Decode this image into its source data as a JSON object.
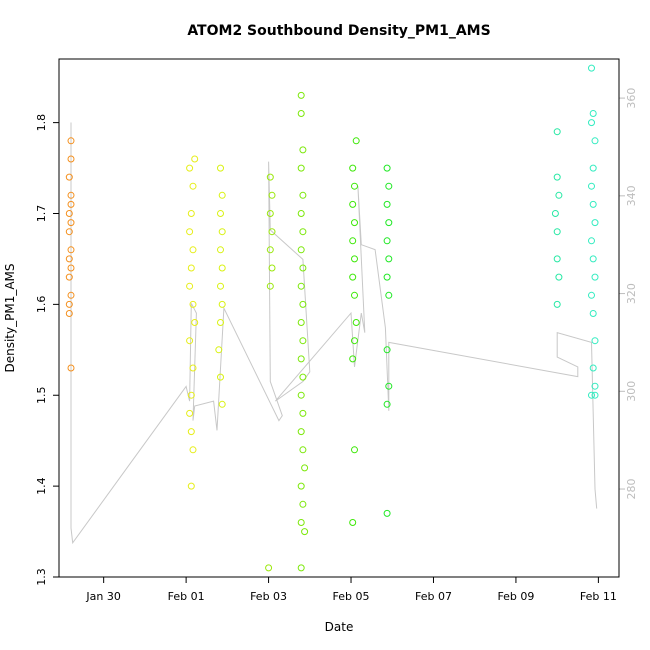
{
  "chart_data": {
    "type": "scatter",
    "title": "ATOM2 Southbound Density_PM1_AMS",
    "xlabel": "Date",
    "ylabel": "Density_PM1_AMS",
    "x_range": [
      "2016-01-28T22:00",
      "2016-02-11T12:00"
    ],
    "ylim": [
      1.3,
      1.87
    ],
    "y2lim": [
      262,
      368
    ],
    "x_ticks": [
      {
        "date": "2016-01-30",
        "label": "Jan 30"
      },
      {
        "date": "2016-02-01",
        "label": "Feb 01"
      },
      {
        "date": "2016-02-03",
        "label": "Feb 03"
      },
      {
        "date": "2016-02-05",
        "label": "Feb 05"
      },
      {
        "date": "2016-02-07",
        "label": "Feb 07"
      },
      {
        "date": "2016-02-09",
        "label": "Feb 09"
      },
      {
        "date": "2016-02-11",
        "label": "Feb 11"
      }
    ],
    "y_ticks": [
      "1.3",
      "1.4",
      "1.5",
      "1.6",
      "1.7",
      "1.8"
    ],
    "y2_ticks": [
      "280",
      "300",
      "320",
      "340",
      "360"
    ],
    "series": [
      {
        "color": "#f4901e",
        "points": [
          [
            "2016-01-29T05:00",
            1.78
          ],
          [
            "2016-01-29T05:00",
            1.76
          ],
          [
            "2016-01-29T04:00",
            1.74
          ],
          [
            "2016-01-29T05:00",
            1.72
          ],
          [
            "2016-01-29T05:00",
            1.71
          ],
          [
            "2016-01-29T04:00",
            1.7
          ],
          [
            "2016-01-29T05:00",
            1.69
          ],
          [
            "2016-01-29T04:00",
            1.68
          ],
          [
            "2016-01-29T05:00",
            1.66
          ],
          [
            "2016-01-29T04:00",
            1.65
          ],
          [
            "2016-01-29T05:00",
            1.64
          ],
          [
            "2016-01-29T04:00",
            1.63
          ],
          [
            "2016-01-29T05:00",
            1.61
          ],
          [
            "2016-01-29T04:00",
            1.6
          ],
          [
            "2016-01-29T04:00",
            1.59
          ],
          [
            "2016-01-29T05:00",
            1.53
          ]
        ]
      },
      {
        "color": "#e6ee1a",
        "points": [
          [
            "2016-02-01T02:00",
            1.75
          ],
          [
            "2016-02-01T04:00",
            1.73
          ],
          [
            "2016-02-01T03:00",
            1.7
          ],
          [
            "2016-02-01T02:00",
            1.68
          ],
          [
            "2016-02-01T04:00",
            1.66
          ],
          [
            "2016-02-01T03:00",
            1.64
          ],
          [
            "2016-02-01T02:00",
            1.62
          ],
          [
            "2016-02-01T04:00",
            1.6
          ],
          [
            "2016-02-01T05:00",
            1.58
          ],
          [
            "2016-02-01T02:00",
            1.56
          ],
          [
            "2016-02-01T04:00",
            1.53
          ],
          [
            "2016-02-01T03:00",
            1.5
          ],
          [
            "2016-02-01T02:00",
            1.48
          ],
          [
            "2016-02-01T03:00",
            1.46
          ],
          [
            "2016-02-01T04:00",
            1.44
          ],
          [
            "2016-02-01T03:00",
            1.4
          ],
          [
            "2016-02-01T05:00",
            1.76
          ]
        ]
      },
      {
        "color": "#d9f212",
        "points": [
          [
            "2016-02-01T20:00",
            1.75
          ],
          [
            "2016-02-01T21:00",
            1.72
          ],
          [
            "2016-02-01T20:00",
            1.7
          ],
          [
            "2016-02-01T21:00",
            1.68
          ],
          [
            "2016-02-01T20:00",
            1.66
          ],
          [
            "2016-02-01T21:00",
            1.64
          ],
          [
            "2016-02-01T20:00",
            1.62
          ],
          [
            "2016-02-01T21:00",
            1.6
          ],
          [
            "2016-02-01T20:00",
            1.58
          ],
          [
            "2016-02-01T19:00",
            1.55
          ],
          [
            "2016-02-01T20:00",
            1.52
          ],
          [
            "2016-02-01T21:00",
            1.49
          ]
        ]
      },
      {
        "color": "#9be80c",
        "points": [
          [
            "2016-02-03T01:00",
            1.74
          ],
          [
            "2016-02-03T02:00",
            1.72
          ],
          [
            "2016-02-03T01:00",
            1.7
          ],
          [
            "2016-02-03T02:00",
            1.68
          ],
          [
            "2016-02-03T01:00",
            1.66
          ],
          [
            "2016-02-03T02:00",
            1.64
          ],
          [
            "2016-02-03T01:00",
            1.62
          ],
          [
            "2016-02-03T00:00",
            1.31
          ]
        ]
      },
      {
        "color": "#7ce80a",
        "points": [
          [
            "2016-02-03T19:00",
            1.83
          ],
          [
            "2016-02-03T19:00",
            1.81
          ],
          [
            "2016-02-03T20:00",
            1.77
          ],
          [
            "2016-02-03T19:00",
            1.75
          ],
          [
            "2016-02-03T20:00",
            1.72
          ],
          [
            "2016-02-03T19:00",
            1.7
          ],
          [
            "2016-02-03T20:00",
            1.68
          ],
          [
            "2016-02-03T19:00",
            1.66
          ],
          [
            "2016-02-03T20:00",
            1.64
          ],
          [
            "2016-02-03T19:00",
            1.62
          ],
          [
            "2016-02-03T20:00",
            1.6
          ],
          [
            "2016-02-03T19:00",
            1.58
          ],
          [
            "2016-02-03T20:00",
            1.56
          ],
          [
            "2016-02-03T19:00",
            1.54
          ],
          [
            "2016-02-03T20:00",
            1.52
          ],
          [
            "2016-02-03T19:00",
            1.5
          ],
          [
            "2016-02-03T20:00",
            1.48
          ],
          [
            "2016-02-03T19:00",
            1.46
          ],
          [
            "2016-02-03T20:00",
            1.44
          ],
          [
            "2016-02-03T21:00",
            1.42
          ],
          [
            "2016-02-03T19:00",
            1.4
          ],
          [
            "2016-02-03T20:00",
            1.38
          ],
          [
            "2016-02-03T19:00",
            1.36
          ],
          [
            "2016-02-03T21:00",
            1.35
          ],
          [
            "2016-02-03T19:00",
            1.31
          ]
        ]
      },
      {
        "color": "#3ee808",
        "points": [
          [
            "2016-02-05T01:00",
            1.75
          ],
          [
            "2016-02-05T02:00",
            1.73
          ],
          [
            "2016-02-05T01:00",
            1.71
          ],
          [
            "2016-02-05T02:00",
            1.69
          ],
          [
            "2016-02-05T01:00",
            1.67
          ],
          [
            "2016-02-05T02:00",
            1.65
          ],
          [
            "2016-02-05T01:00",
            1.63
          ],
          [
            "2016-02-05T02:00",
            1.61
          ],
          [
            "2016-02-05T03:00",
            1.58
          ],
          [
            "2016-02-05T02:00",
            1.56
          ],
          [
            "2016-02-05T03:00",
            1.78
          ],
          [
            "2016-02-05T01:00",
            1.54
          ],
          [
            "2016-02-05T02:00",
            1.44
          ],
          [
            "2016-02-05T01:00",
            1.36
          ]
        ]
      },
      {
        "color": "#1fe824",
        "points": [
          [
            "2016-02-05T21:00",
            1.75
          ],
          [
            "2016-02-05T22:00",
            1.73
          ],
          [
            "2016-02-05T21:00",
            1.71
          ],
          [
            "2016-02-05T22:00",
            1.69
          ],
          [
            "2016-02-05T21:00",
            1.67
          ],
          [
            "2016-02-05T22:00",
            1.65
          ],
          [
            "2016-02-05T21:00",
            1.63
          ],
          [
            "2016-02-05T22:00",
            1.61
          ],
          [
            "2016-02-05T21:00",
            1.55
          ],
          [
            "2016-02-05T22:00",
            1.51
          ],
          [
            "2016-02-05T21:00",
            1.49
          ],
          [
            "2016-02-05T21:00",
            1.37
          ]
        ]
      },
      {
        "color": "#26e8a4",
        "points": [
          [
            "2016-02-10T00:00",
            1.79
          ],
          [
            "2016-02-10T00:00",
            1.74
          ],
          [
            "2016-02-10T01:00",
            1.72
          ],
          [
            "2016-02-09T23:00",
            1.7
          ],
          [
            "2016-02-10T00:00",
            1.68
          ],
          [
            "2016-02-10T00:00",
            1.65
          ],
          [
            "2016-02-10T01:00",
            1.63
          ],
          [
            "2016-02-10T00:00",
            1.6
          ]
        ]
      },
      {
        "color": "#33ecc0",
        "points": [
          [
            "2016-02-10T20:00",
            1.86
          ],
          [
            "2016-02-10T21:00",
            1.81
          ],
          [
            "2016-02-10T20:00",
            1.8
          ],
          [
            "2016-02-10T22:00",
            1.78
          ],
          [
            "2016-02-10T21:00",
            1.75
          ],
          [
            "2016-02-10T20:00",
            1.73
          ],
          [
            "2016-02-10T21:00",
            1.71
          ],
          [
            "2016-02-10T22:00",
            1.69
          ],
          [
            "2016-02-10T20:00",
            1.67
          ],
          [
            "2016-02-10T21:00",
            1.65
          ],
          [
            "2016-02-10T22:00",
            1.63
          ],
          [
            "2016-02-10T20:00",
            1.61
          ],
          [
            "2016-02-10T21:00",
            1.59
          ],
          [
            "2016-02-10T22:00",
            1.56
          ],
          [
            "2016-02-10T21:00",
            1.53
          ],
          [
            "2016-02-10T22:00",
            1.51
          ],
          [
            "2016-02-10T20:00",
            1.5
          ],
          [
            "2016-02-10T22:00",
            1.5
          ]
        ]
      }
    ],
    "secondary_line": {
      "color": "#c8c8c8",
      "axis": "right",
      "points": [
        [
          "2016-01-29T05:00",
          355
        ],
        [
          "2016-01-29T05:00",
          272
        ],
        [
          "2016-01-29T06:00",
          269
        ],
        [
          "2016-02-01T00:00",
          301
        ],
        [
          "2016-02-01T02:00",
          298
        ],
        [
          "2016-02-01T03:00",
          318
        ],
        [
          "2016-02-01T06:00",
          316
        ],
        [
          "2016-02-01T04:00",
          294
        ],
        [
          "2016-02-01T05:00",
          297
        ],
        [
          "2016-02-01T16:00",
          298
        ],
        [
          "2016-02-01T18:00",
          292
        ],
        [
          "2016-02-01T22:00",
          317
        ],
        [
          "2016-02-03T06:00",
          294
        ],
        [
          "2016-02-03T08:00",
          295
        ],
        [
          "2016-02-03T01:00",
          302
        ],
        [
          "2016-02-03T00:00",
          347
        ],
        [
          "2016-02-03T01:00",
          333
        ],
        [
          "2016-02-03T20:00",
          327
        ],
        [
          "2016-02-04T00:00",
          304
        ],
        [
          "2016-02-03T20:00",
          302
        ],
        [
          "2016-02-03T04:00",
          298
        ],
        [
          "2016-02-05T00:00",
          316
        ],
        [
          "2016-02-05T02:00",
          305
        ],
        [
          "2016-02-05T06:00",
          316
        ],
        [
          "2016-02-05T08:00",
          312
        ],
        [
          "2016-02-05T04:00",
          342
        ],
        [
          "2016-02-05T06:00",
          330
        ],
        [
          "2016-02-05T14:00",
          329
        ],
        [
          "2016-02-05T20:00",
          313
        ],
        [
          "2016-02-05T22:00",
          296
        ],
        [
          "2016-02-05T22:00",
          310
        ],
        [
          "2016-02-10T12:00",
          303
        ],
        [
          "2016-02-10T12:00",
          305
        ],
        [
          "2016-02-10T00:00",
          307
        ],
        [
          "2016-02-10T00:00",
          312
        ],
        [
          "2016-02-10T20:00",
          310
        ],
        [
          "2016-02-10T22:00",
          280
        ],
        [
          "2016-02-10T23:00",
          276
        ]
      ]
    },
    "grid": false,
    "legend": "none"
  }
}
